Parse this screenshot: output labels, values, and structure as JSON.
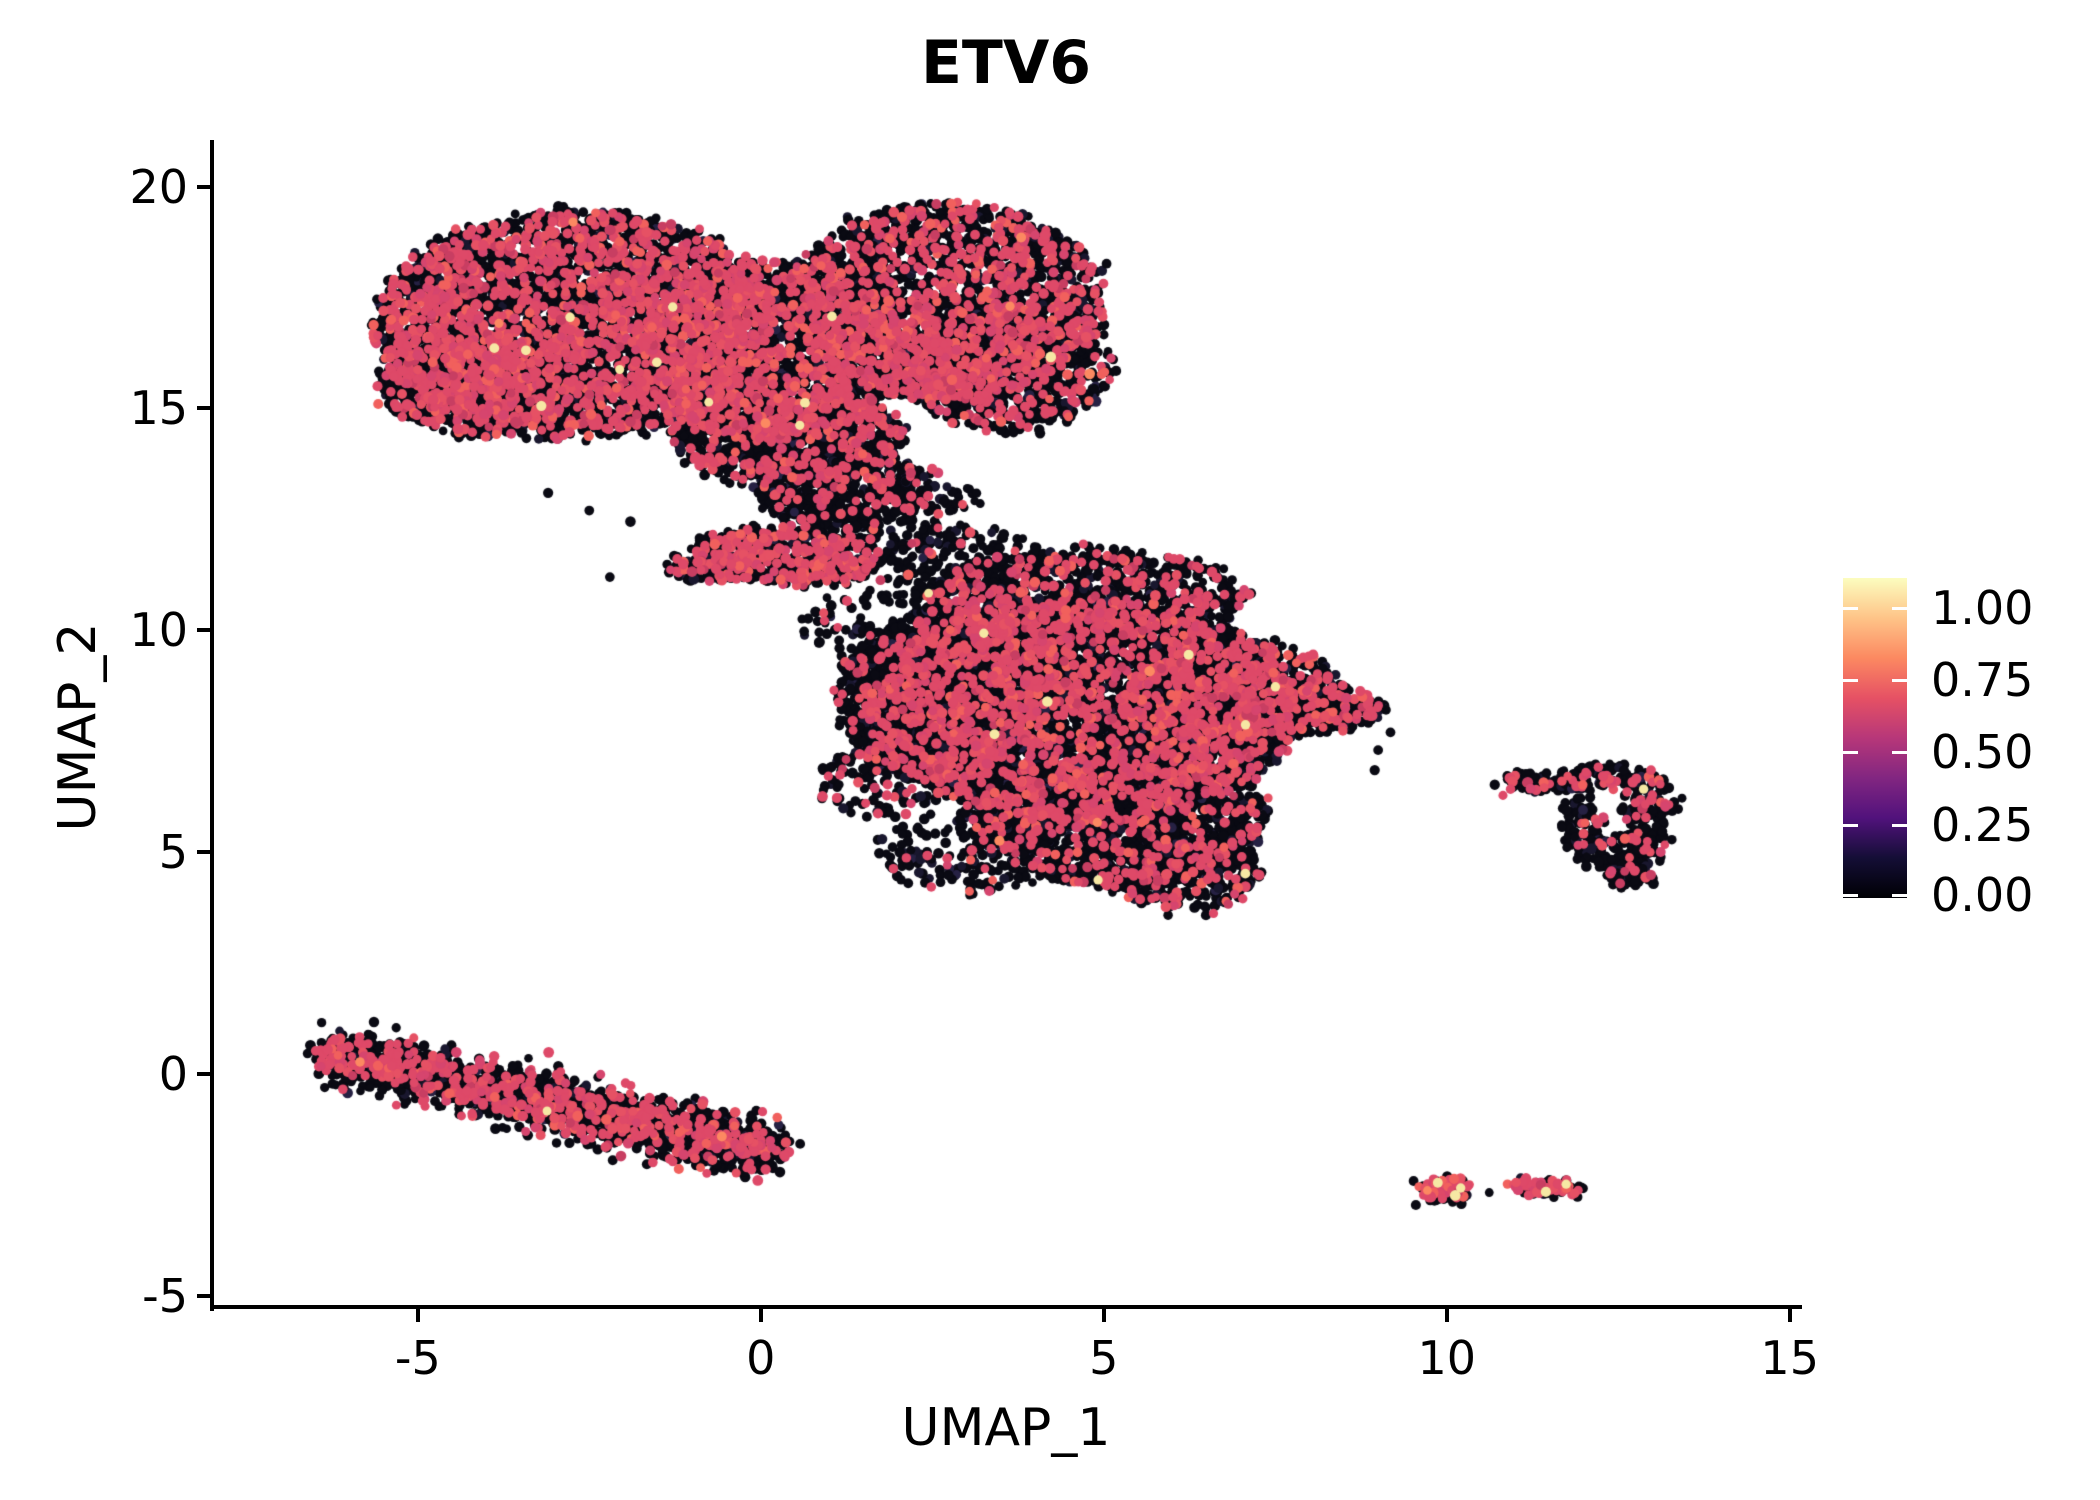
{
  "title": "ETV6",
  "axes": {
    "x_label": "UMAP_1",
    "y_label": "UMAP_2",
    "x_tick_labels": [
      "-5",
      "0",
      "5",
      "10",
      "15"
    ],
    "x_tick_values": [
      -5,
      0,
      5,
      10,
      15
    ],
    "y_tick_labels": [
      "-5",
      "0",
      "5",
      "10",
      "15",
      "20"
    ],
    "y_tick_values": [
      -5,
      0,
      5,
      10,
      15,
      20
    ],
    "x_range": [
      -8.0,
      15.15
    ],
    "y_range": [
      -5.25,
      21.05
    ]
  },
  "legend": {
    "tick_labels": [
      "1.00",
      "0.75",
      "0.50",
      "0.25",
      "0.00"
    ],
    "tick_values": [
      1.0,
      0.75,
      0.5,
      0.25,
      0.0
    ],
    "tick_fracs_from_bottom": [
      0.906,
      0.681,
      0.456,
      0.228,
      0.009
    ],
    "gradient_stops": [
      {
        "t": 0.0,
        "color": "#000004"
      },
      {
        "t": 0.125,
        "color": "#140e36"
      },
      {
        "t": 0.25,
        "color": "#51127c"
      },
      {
        "t": 0.375,
        "color": "#822681"
      },
      {
        "t": 0.5,
        "color": "#b73779"
      },
      {
        "t": 0.625,
        "color": "#e65164"
      },
      {
        "t": 0.75,
        "color": "#fc8961"
      },
      {
        "t": 0.875,
        "color": "#fec488"
      },
      {
        "t": 1.0,
        "color": "#fcfdbf"
      }
    ]
  },
  "chart_data": {
    "type": "scatter",
    "title": "ETV6",
    "xlabel": "UMAP_1",
    "ylabel": "UMAP_2",
    "xlim": [
      -8.0,
      15.15
    ],
    "ylim": [
      -5.25,
      21.05
    ],
    "grid": false,
    "legend_position": "right",
    "colormap": "magma",
    "colorbar_range": [
      0.0,
      1.0
    ],
    "point_radius_px": 4.8,
    "value_colors": {
      "zero": "#0a0a13",
      "zero_variants": [
        "#0a0a13",
        "#19172e",
        "#262143"
      ],
      "zero_weights": [
        0.9,
        0.08,
        0.02
      ],
      "expressed": "#de4968",
      "expressed_variants": [
        "#de4968",
        "#e65164",
        "#d6456e",
        "#f1605d",
        "#c83e62"
      ],
      "expressed_weights": [
        0.55,
        0.18,
        0.12,
        0.1,
        0.05
      ],
      "high_cream": "#f6e8a4",
      "high_orange": "#fc8961"
    },
    "clusters": [
      {
        "name": "top-left-lobe",
        "cx": -2.7,
        "cy": 16.9,
        "rx": 2.9,
        "ry": 2.55,
        "rot": 0,
        "n": 4000,
        "pink": 0.34,
        "rare": 0.0018
      },
      {
        "name": "top-left-bump",
        "cx": -4.2,
        "cy": 15.55,
        "rx": 1.35,
        "ry": 1.15,
        "rot": 0,
        "n": 750,
        "pink": 0.3,
        "rare": 0.0018
      },
      {
        "name": "top-center",
        "cx": 0.2,
        "cy": 16.3,
        "rx": 2.0,
        "ry": 2.0,
        "rot": 0,
        "n": 1700,
        "pink": 0.32,
        "rare": 0.0018
      },
      {
        "name": "top-right-lobe",
        "cx": 2.7,
        "cy": 17.4,
        "rx": 2.3,
        "ry": 2.2,
        "rot": 0,
        "n": 2300,
        "pink": 0.3,
        "rare": 0.0018
      },
      {
        "name": "top-right-lower",
        "cx": 3.6,
        "cy": 15.9,
        "rx": 1.5,
        "ry": 1.4,
        "rot": 0,
        "n": 800,
        "pink": 0.26,
        "rare": 0.0018
      },
      {
        "name": "top-bottom-tail",
        "cx": 0.4,
        "cy": 14.35,
        "rx": 1.7,
        "ry": 1.1,
        "rot": 0,
        "n": 900,
        "pink": 0.22,
        "rare": 0.001
      },
      {
        "name": "top-lower-sparse",
        "cx": 1.2,
        "cy": 13.2,
        "rx": 1.25,
        "ry": 0.95,
        "rot": 0,
        "n": 400,
        "pink": 0.14,
        "rare": 0
      },
      {
        "name": "bridge-clump",
        "cx": 0.35,
        "cy": 11.65,
        "rx": 1.35,
        "ry": 0.6,
        "rot": -8,
        "n": 560,
        "pink": 0.36,
        "rare": 0
      },
      {
        "name": "bridge-left-arm",
        "cx": -0.85,
        "cy": 11.4,
        "rx": 0.6,
        "ry": 0.28,
        "rot": 0,
        "n": 90,
        "pink": 0.22,
        "rare": 0
      },
      {
        "name": "bridge-sparse-1",
        "cx": 1.7,
        "cy": 12.7,
        "rx": 1.5,
        "ry": 1.1,
        "rot": 0,
        "n": 240,
        "pink": 0.12,
        "rare": 0
      },
      {
        "name": "bridge-sparse-2",
        "cx": 2.9,
        "cy": 11.4,
        "rx": 1.25,
        "ry": 1.0,
        "rot": 0,
        "n": 190,
        "pink": 0.1,
        "rare": 0
      },
      {
        "name": "bridge-sparse-3",
        "cx": 2.3,
        "cy": 10.2,
        "rx": 1.7,
        "ry": 0.85,
        "rot": 0,
        "n": 150,
        "pink": 0.1,
        "rare": 0
      },
      {
        "name": "bridge-trail",
        "cx": 3.6,
        "cy": 9.7,
        "rx": 1.05,
        "ry": 0.85,
        "rot": 0,
        "n": 110,
        "pink": 0.1,
        "rare": 0
      },
      {
        "name": "mid-core",
        "cx": 4.7,
        "cy": 8.2,
        "rx": 3.1,
        "ry": 2.5,
        "rot": 0,
        "n": 5000,
        "pink": 0.21,
        "rare": 0.0018
      },
      {
        "name": "mid-left",
        "cx": 2.6,
        "cy": 8.5,
        "rx": 1.5,
        "ry": 1.9,
        "rot": 0,
        "n": 1400,
        "pink": 0.18,
        "rare": 0.001
      },
      {
        "name": "mid-right",
        "cx": 6.9,
        "cy": 8.5,
        "rx": 1.6,
        "ry": 1.3,
        "rot": 0,
        "n": 900,
        "pink": 0.24,
        "rare": 0.001
      },
      {
        "name": "mid-tip",
        "cx": 8.3,
        "cy": 8.2,
        "rx": 0.78,
        "ry": 0.5,
        "rot": 0,
        "n": 170,
        "pink": 0.32,
        "rare": 0
      },
      {
        "name": "mid-bottom",
        "cx": 5.2,
        "cy": 5.7,
        "rx": 2.2,
        "ry": 1.45,
        "rot": 0,
        "n": 1500,
        "pink": 0.17,
        "rare": 0.002
      },
      {
        "name": "mid-bottom-tip",
        "cx": 6.2,
        "cy": 4.5,
        "rx": 1.1,
        "ry": 0.75,
        "rot": 0,
        "n": 380,
        "pink": 0.15,
        "rare": 0.004
      },
      {
        "name": "mid-top-edge",
        "cx": 4.7,
        "cy": 10.8,
        "rx": 2.4,
        "ry": 1.0,
        "rot": 0,
        "n": 900,
        "pink": 0.22,
        "rare": 0.001
      },
      {
        "name": "mid-left-sparse",
        "cx": 3.1,
        "cy": 5.0,
        "rx": 1.4,
        "ry": 0.95,
        "rot": 0,
        "n": 200,
        "pink": 0.12,
        "rare": 0
      },
      {
        "name": "mid-left-sparse2",
        "cx": 1.75,
        "cy": 6.6,
        "rx": 0.9,
        "ry": 0.9,
        "rot": 0,
        "n": 130,
        "pink": 0.1,
        "rare": 0
      },
      {
        "name": "right-arm",
        "cx": 11.45,
        "cy": 6.55,
        "rx": 0.6,
        "ry": 0.18,
        "rot": -10,
        "n": 70,
        "pink": 0.15,
        "rare": 0
      },
      {
        "name": "right-top",
        "cx": 12.35,
        "cy": 6.7,
        "rx": 0.78,
        "ry": 0.28,
        "rot": 0,
        "n": 95,
        "pink": 0.2,
        "rare": 0
      },
      {
        "name": "right-right",
        "cx": 12.95,
        "cy": 5.9,
        "rx": 0.35,
        "ry": 0.78,
        "rot": 0,
        "n": 110,
        "pink": 0.22,
        "rare": 0
      },
      {
        "name": "right-left",
        "cx": 11.95,
        "cy": 5.65,
        "rx": 0.3,
        "ry": 0.62,
        "rot": 0,
        "n": 70,
        "pink": 0.1,
        "rare": 0
      },
      {
        "name": "right-bottom",
        "cx": 12.5,
        "cy": 4.95,
        "rx": 0.58,
        "ry": 0.45,
        "rot": 0,
        "n": 120,
        "pink": 0.13,
        "rare": 0
      },
      {
        "name": "right-tail",
        "cx": 12.72,
        "cy": 4.5,
        "rx": 0.36,
        "ry": 0.24,
        "rot": 0,
        "n": 45,
        "pink": 0.1,
        "rare": 0
      },
      {
        "name": "tiny-bottom-a",
        "cx": 9.95,
        "cy": -2.62,
        "rx": 0.37,
        "ry": 0.27,
        "rot": 0,
        "n": 95,
        "pink": 0.42,
        "rare": 0.035
      },
      {
        "name": "tiny-bottom-b",
        "cx": 11.45,
        "cy": -2.55,
        "rx": 0.5,
        "ry": 0.16,
        "rot": -6,
        "n": 75,
        "pink": 0.55,
        "rare": 0.015
      }
    ],
    "stripe": {
      "name": "bottom-left-stripe",
      "x0": -6.3,
      "y0": 0.45,
      "x1": 0.25,
      "y1": -1.8,
      "sigma": 0.3,
      "along_jitter": 0.18,
      "n": 2300,
      "pink": 0.23,
      "rare": 0.0009
    },
    "singles": [
      {
        "x": 6.6,
        "y": 3.62,
        "c": "pink"
      },
      {
        "x": 6.49,
        "y": 3.58,
        "c": "black"
      },
      {
        "x": 10.3,
        "y": -2.55,
        "c": "pink"
      },
      {
        "x": 10.62,
        "y": -2.67,
        "c": "black"
      },
      {
        "x": 9.55,
        "y": -2.95,
        "c": "black"
      },
      {
        "x": 12.87,
        "y": 6.42,
        "c": "cream"
      },
      {
        "x": 10.7,
        "y": 6.52,
        "c": "black"
      },
      {
        "x": 10.93,
        "y": 6.42,
        "c": "pink"
      },
      {
        "x": 10.82,
        "y": 6.28,
        "c": "pink"
      },
      {
        "x": 9.0,
        "y": 7.3,
        "c": "black"
      },
      {
        "x": 9.18,
        "y": 7.7,
        "c": "black"
      },
      {
        "x": 8.95,
        "y": 6.85,
        "c": "black"
      },
      {
        "x": -3.1,
        "y": 13.1,
        "c": "black"
      },
      {
        "x": -2.5,
        "y": 12.7,
        "c": "black"
      },
      {
        "x": -1.9,
        "y": 12.45,
        "c": "black"
      },
      {
        "x": -2.2,
        "y": 11.2,
        "c": "black"
      },
      {
        "x": 12.55,
        "y": 5.95,
        "c": "black"
      }
    ]
  }
}
